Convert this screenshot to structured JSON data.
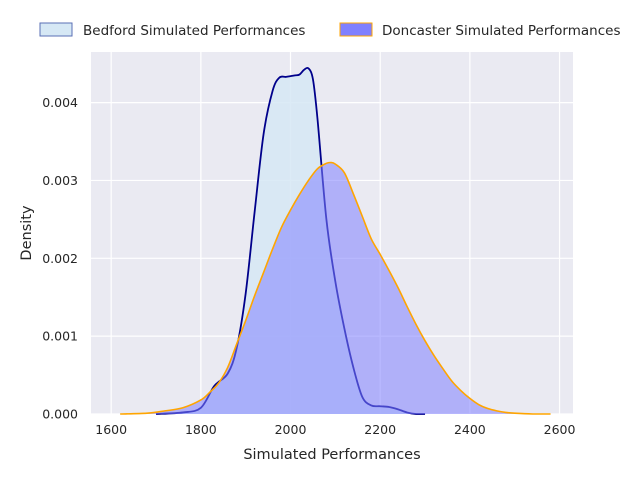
{
  "chart_data": {
    "type": "area",
    "xlabel": "Simulated Performances",
    "ylabel": "Density",
    "xlim": [
      1555,
      2630
    ],
    "ylim": [
      0,
      0.00465
    ],
    "x_ticks": [
      1600,
      1800,
      2000,
      2200,
      2400,
      2600
    ],
    "x_tick_labels": [
      "1600",
      "1800",
      "2000",
      "2200",
      "2400",
      "2600"
    ],
    "y_ticks": [
      0,
      0.001,
      0.002,
      0.003,
      0.004
    ],
    "y_tick_labels": [
      "0.000",
      "0.001",
      "0.002",
      "0.003",
      "0.004"
    ],
    "grid": true,
    "legend_position": "top",
    "colors": {
      "background": "#eaeaf2",
      "grid": "#ffffff",
      "bedford_fill": "#d6e8f5",
      "bedford_line": "#00008b",
      "doncaster_fill": "#8080ff",
      "doncaster_line": "#ffa500"
    },
    "series": [
      {
        "name": "Bedford Simulated Performances",
        "x": [
          1700,
          1760,
          1800,
          1830,
          1860,
          1880,
          1900,
          1920,
          1940,
          1960,
          1975,
          1990,
          2000,
          2010,
          2020,
          2030,
          2040,
          2050,
          2060,
          2080,
          2100,
          2120,
          2140,
          2160,
          2180,
          2200,
          2220,
          2240,
          2260,
          2280,
          2300
        ],
        "y": [
          0.0,
          2e-05,
          8e-05,
          0.00036,
          0.00052,
          0.00085,
          0.00155,
          0.0026,
          0.0036,
          0.00415,
          0.00432,
          0.00433,
          0.00434,
          0.00435,
          0.00436,
          0.00442,
          0.00444,
          0.0043,
          0.0038,
          0.0025,
          0.0017,
          0.0011,
          0.0006,
          0.00022,
          0.00011,
          0.0001,
          9e-05,
          6e-05,
          2e-05,
          0.0,
          0.0
        ]
      },
      {
        "name": "Doncaster Simulated Performances",
        "x": [
          1620,
          1680,
          1720,
          1760,
          1800,
          1820,
          1840,
          1860,
          1880,
          1900,
          1920,
          1940,
          1960,
          1980,
          2000,
          2020,
          2040,
          2060,
          2080,
          2090,
          2100,
          2120,
          2140,
          2160,
          2180,
          2200,
          2220,
          2240,
          2260,
          2280,
          2300,
          2320,
          2340,
          2360,
          2380,
          2400,
          2420,
          2440,
          2460,
          2480,
          2500,
          2540,
          2580
        ],
        "y": [
          0.0,
          1e-05,
          4e-05,
          8e-05,
          0.00018,
          0.00028,
          0.0004,
          0.0006,
          0.0009,
          0.0012,
          0.00152,
          0.00182,
          0.00212,
          0.0024,
          0.00262,
          0.00282,
          0.003,
          0.00315,
          0.00322,
          0.00323,
          0.00321,
          0.0031,
          0.00283,
          0.00254,
          0.00225,
          0.00205,
          0.00184,
          0.00162,
          0.00138,
          0.00115,
          0.00094,
          0.00075,
          0.00058,
          0.00042,
          0.0003,
          0.0002,
          0.00012,
          7e-05,
          4e-05,
          2e-05,
          1e-05,
          0.0,
          0.0
        ]
      }
    ]
  }
}
